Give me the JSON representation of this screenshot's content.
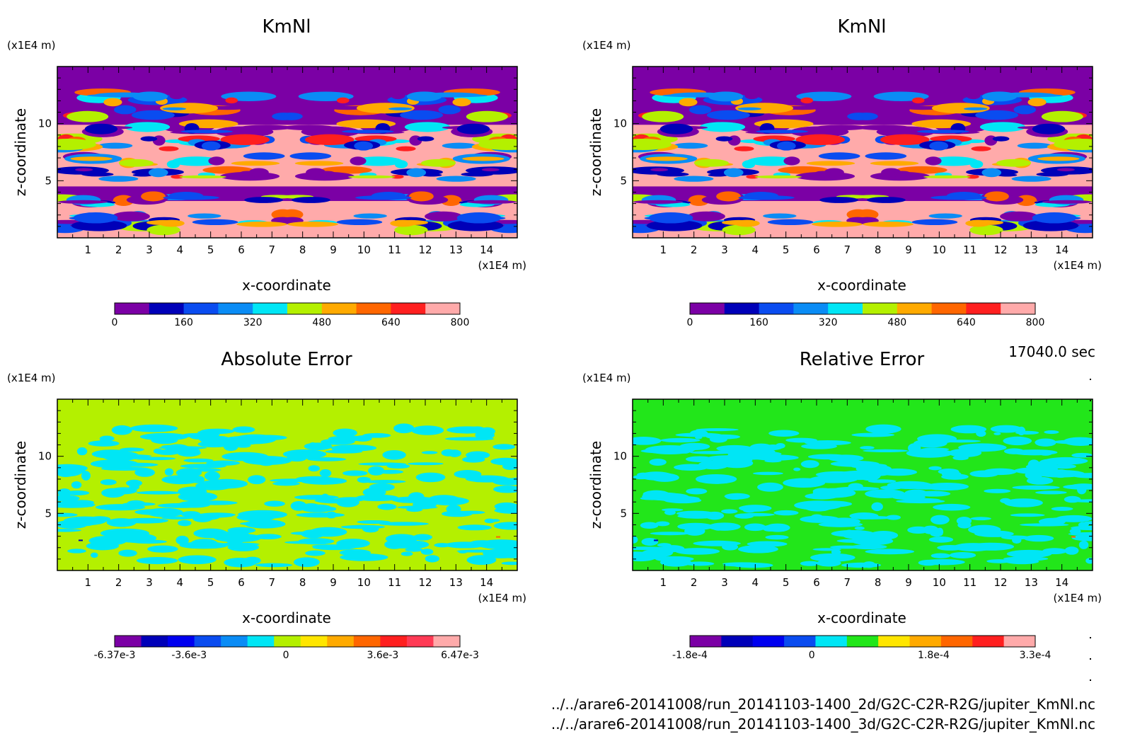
{
  "time_label": "17040.0 sec",
  "files": [
    "../../arare6-20141008/run_20141103-1400_2d/G2C-C2R-R2G/jupiter_KmNl.nc",
    "../../arare6-20141008/run_20141103-1400_3d/G2C-C2R-R2G/jupiter_KmNl.nc"
  ],
  "chart_data": [
    {
      "type": "heatmap",
      "title": "KmNl",
      "xlabel": "x-coordinate",
      "ylabel": "z-coordinate",
      "x_unit": "(x1E4 m)",
      "y_unit": "(x1E4 m)",
      "xlim": [
        0,
        15
      ],
      "ylim": [
        0,
        15
      ],
      "x_ticks": [
        1,
        2,
        3,
        4,
        5,
        6,
        7,
        8,
        9,
        10,
        11,
        12,
        13,
        14
      ],
      "y_ticks": [
        5,
        10
      ],
      "colorbar": {
        "levels": [
          0,
          80,
          160,
          240,
          320,
          400,
          480,
          560,
          640,
          720,
          800
        ],
        "labels": [
          "0",
          "160",
          "320",
          "480",
          "640",
          "800"
        ],
        "colors": [
          "#7b00a5",
          "#0000b8",
          "#0a4cf0",
          "#0a8cf5",
          "#00e6f5",
          "#b4f000",
          "#ffaa00",
          "#ff6600",
          "#ff1f1f",
          "#ffaaaa"
        ]
      },
      "field": "pattern"
    },
    {
      "type": "heatmap",
      "title": "KmNl",
      "xlabel": "x-coordinate",
      "ylabel": "z-coordinate",
      "x_unit": "(x1E4 m)",
      "y_unit": "(x1E4 m)",
      "xlim": [
        0,
        15
      ],
      "ylim": [
        0,
        15
      ],
      "x_ticks": [
        1,
        2,
        3,
        4,
        5,
        6,
        7,
        8,
        9,
        10,
        11,
        12,
        13,
        14
      ],
      "y_ticks": [
        5,
        10
      ],
      "colorbar": {
        "levels": [
          0,
          80,
          160,
          240,
          320,
          400,
          480,
          560,
          640,
          720,
          800
        ],
        "labels": [
          "0",
          "160",
          "320",
          "480",
          "640",
          "800"
        ],
        "colors": [
          "#7b00a5",
          "#0000b8",
          "#0a4cf0",
          "#0a8cf5",
          "#00e6f5",
          "#b4f000",
          "#ffaa00",
          "#ff6600",
          "#ff1f1f",
          "#ffaaaa"
        ]
      },
      "field": "pattern"
    },
    {
      "type": "heatmap",
      "title": "Absolute Error",
      "xlabel": "x-coordinate",
      "ylabel": "z-coordinate",
      "x_unit": "(x1E4 m)",
      "y_unit": "(x1E4 m)",
      "xlim": [
        0,
        15
      ],
      "ylim": [
        0,
        15
      ],
      "x_ticks": [
        1,
        2,
        3,
        4,
        5,
        6,
        7,
        8,
        9,
        10,
        11,
        12,
        13,
        14
      ],
      "y_ticks": [
        5,
        10
      ],
      "colorbar": {
        "levels": [
          -0.00637,
          -0.0036,
          0,
          0.0036,
          0.00647
        ],
        "labels": [
          "-6.37e-3",
          "-3.6e-3",
          "0",
          "3.6e-3",
          "6.47e-3"
        ],
        "colors": [
          "#7b00a5",
          "#0000b8",
          "#0000f0",
          "#0a4cf0",
          "#0a8cf5",
          "#00e6f5",
          "#b4f000",
          "#ffe600",
          "#ffaa00",
          "#ff6600",
          "#ff1f1f",
          "#ff3a55",
          "#ffaaaa"
        ]
      },
      "background": "#b4f000",
      "patch_color": "#00e6f5"
    },
    {
      "type": "heatmap",
      "title": "Relative Error",
      "xlabel": "x-coordinate",
      "ylabel": "z-coordinate",
      "x_unit": "(x1E4 m)",
      "y_unit": "(x1E4 m)",
      "xlim": [
        0,
        15
      ],
      "ylim": [
        0,
        15
      ],
      "x_ticks": [
        1,
        2,
        3,
        4,
        5,
        6,
        7,
        8,
        9,
        10,
        11,
        12,
        13,
        14
      ],
      "y_ticks": [
        5,
        10
      ],
      "colorbar": {
        "levels": [
          -0.00018,
          0,
          0.00018,
          0.00033
        ],
        "labels": [
          "-1.8e-4",
          "0",
          "1.8e-4",
          "3.3e-4"
        ],
        "colors": [
          "#7b00a5",
          "#0000b8",
          "#0000f0",
          "#0a4cf0",
          "#00e6f5",
          "#22e61a",
          "#ffe600",
          "#ffaa00",
          "#ff6600",
          "#ff1f1f",
          "#ffaaaa"
        ]
      },
      "background": "#22e61a",
      "patch_color": "#00e6f5"
    }
  ]
}
